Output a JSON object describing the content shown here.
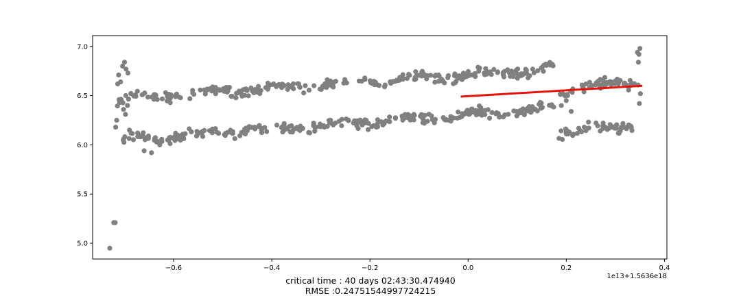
{
  "chart_data": {
    "type": "scatter",
    "title": "",
    "xlabel": "",
    "ylabel": "",
    "xlim": [
      -0.765,
      0.405
    ],
    "ylim": [
      4.84,
      7.11
    ],
    "x_tick_labels": [
      "−0.6",
      "−0.4",
      "−0.2",
      "0.0",
      "0.2",
      "0.4"
    ],
    "x_ticks": [
      -0.6,
      -0.4,
      -0.2,
      0.0,
      0.2,
      0.4
    ],
    "y_tick_labels": [
      "5.0",
      "5.5",
      "6.0",
      "6.5",
      "7.0"
    ],
    "y_ticks": [
      5.0,
      5.5,
      6.0,
      6.5,
      7.0
    ],
    "x_offset_text": "1e13+1.5636e18",
    "grid": false,
    "scatter_color": "#808080",
    "fit_color": "#e8120c",
    "scatter_bands": [
      {
        "name": "",
        "x_start": -0.715,
        "x_end": 0.175,
        "y_start": 6.47,
        "y_end": 6.77,
        "spread": 0.05
      },
      {
        "name": "",
        "x_start": -0.705,
        "x_end": 0.175,
        "y_start": 6.05,
        "y_end": 6.37,
        "spread": 0.05
      },
      {
        "name": "",
        "x_start": 0.185,
        "x_end": 0.35,
        "y_start": 6.55,
        "y_end": 6.65,
        "spread": 0.05
      },
      {
        "name": "",
        "x_start": 0.185,
        "x_end": 0.35,
        "y_start": 6.12,
        "y_end": 6.22,
        "spread": 0.05
      }
    ],
    "scatter_points": [
      {
        "x": -0.73,
        "y": 4.95
      },
      {
        "x": -0.722,
        "y": 5.21
      },
      {
        "x": -0.719,
        "y": 5.21
      },
      {
        "x": -0.718,
        "y": 6.18
      },
      {
        "x": -0.716,
        "y": 6.25
      },
      {
        "x": -0.714,
        "y": 6.62
      },
      {
        "x": -0.712,
        "y": 6.71
      },
      {
        "x": -0.708,
        "y": 6.64
      },
      {
        "x": -0.704,
        "y": 6.8
      },
      {
        "x": -0.7,
        "y": 6.84
      },
      {
        "x": -0.697,
        "y": 6.77
      },
      {
        "x": -0.693,
        "y": 6.73
      },
      {
        "x": -0.702,
        "y": 6.36
      },
      {
        "x": -0.698,
        "y": 6.31
      },
      {
        "x": -0.694,
        "y": 6.4
      },
      {
        "x": -0.69,
        "y": 6.15
      },
      {
        "x": -0.66,
        "y": 5.94
      },
      {
        "x": -0.645,
        "y": 5.92
      },
      {
        "x": 0.19,
        "y": 6.4
      },
      {
        "x": 0.2,
        "y": 6.45
      },
      {
        "x": 0.21,
        "y": 6.34
      },
      {
        "x": 0.345,
        "y": 6.94
      },
      {
        "x": 0.348,
        "y": 6.92
      },
      {
        "x": 0.35,
        "y": 6.98
      },
      {
        "x": 0.347,
        "y": 6.84
      },
      {
        "x": 0.349,
        "y": 6.42
      },
      {
        "x": 0.351,
        "y": 6.52
      }
    ],
    "fit_line": {
      "x": [
        -0.015,
        0.355
      ],
      "y": [
        6.49,
        6.6
      ]
    },
    "captions": [
      "critical time : 40 days 02:43:30.474940",
      "RMSE :0.24751544997724215"
    ]
  }
}
